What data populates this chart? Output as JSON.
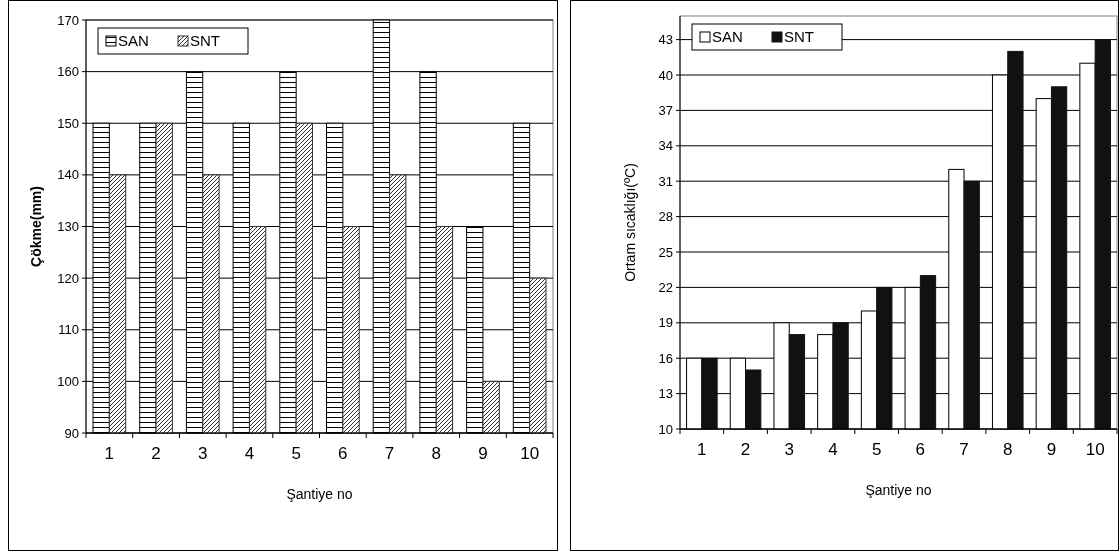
{
  "chart_data": [
    {
      "type": "bar",
      "xlabel": "Şantiye no",
      "ylabel": "Çökme(mm)",
      "categories": [
        "1",
        "2",
        "3",
        "4",
        "5",
        "6",
        "7",
        "8",
        "9",
        "10"
      ],
      "series": [
        {
          "name": "SAN",
          "color": "#000000",
          "values": [
            150,
            150,
            160,
            150,
            160,
            150,
            170,
            160,
            130,
            150
          ]
        },
        {
          "name": "SNT",
          "color": "#333333",
          "values": [
            140,
            150,
            140,
            130,
            150,
            130,
            140,
            130,
            100,
            120
          ]
        }
      ],
      "ylim": [
        90,
        170
      ],
      "yticks": [
        90,
        100,
        110,
        120,
        130,
        140,
        150,
        160,
        170
      ],
      "grid": "y",
      "legend": "top left"
    },
    {
      "type": "bar",
      "xlabel": "Şantiye no",
      "ylabel": "Ortam sıcaklığı(ºC)",
      "categories": [
        "1",
        "2",
        "3",
        "4",
        "5",
        "6",
        "7",
        "8",
        "9",
        "10"
      ],
      "series": [
        {
          "name": "SAN",
          "color": "#000000",
          "values": [
            16,
            16,
            19,
            18,
            20,
            22,
            32,
            40,
            38,
            41
          ]
        },
        {
          "name": "SNT",
          "color": "#111111",
          "values": [
            16,
            15,
            18,
            19,
            22,
            23,
            31,
            42,
            39,
            43
          ]
        }
      ],
      "ylim": [
        10,
        45
      ],
      "yticks": [
        10,
        13,
        16,
        19,
        22,
        25,
        28,
        31,
        34,
        37,
        40,
        43
      ],
      "grid": "y",
      "legend": "top left"
    }
  ]
}
